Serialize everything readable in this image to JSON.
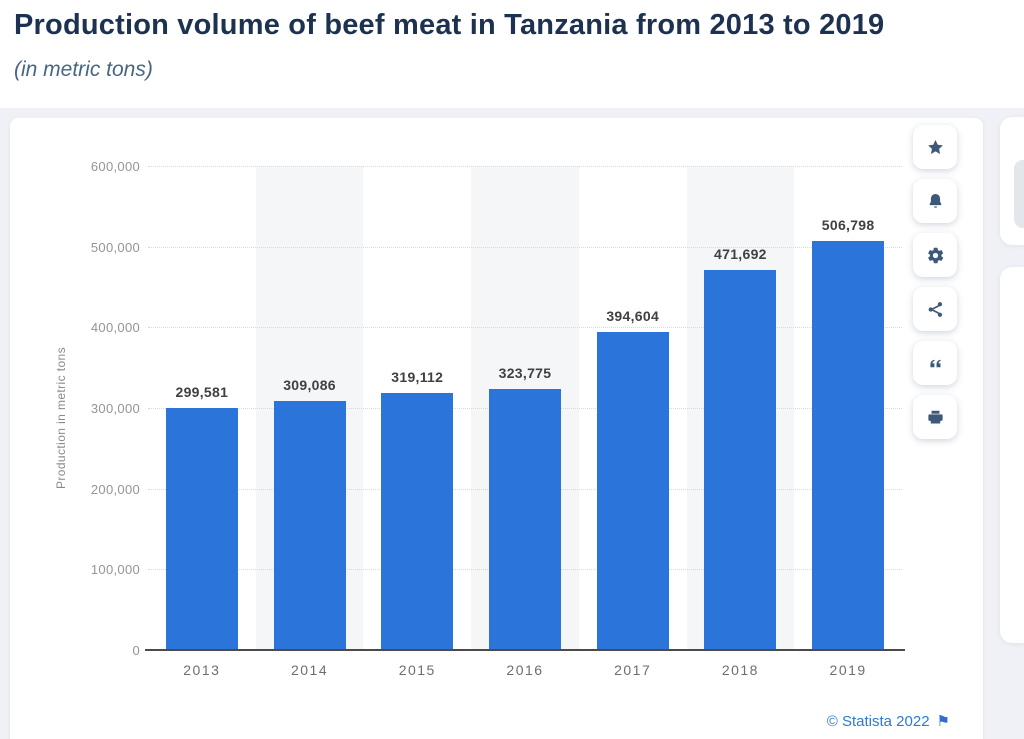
{
  "header": {
    "title": "Production volume of beef meat in Tanzania from 2013 to 2019",
    "subtitle": "(in metric tons)"
  },
  "chart_data": {
    "type": "bar",
    "title": "Production volume of beef meat in Tanzania from 2013 to 2019",
    "subtitle": "(in metric tons)",
    "categories": [
      "2013",
      "2014",
      "2015",
      "2016",
      "2017",
      "2018",
      "2019"
    ],
    "values": [
      299581,
      309086,
      319112,
      323775,
      394604,
      471692,
      506798
    ],
    "value_labels": [
      "299,581",
      "309,086",
      "319,112",
      "323,775",
      "394,604",
      "471,692",
      "506,798"
    ],
    "xlabel": "",
    "ylabel": "Production in metric tons",
    "ylim": [
      0,
      600000
    ],
    "ytick_step": 100000,
    "ytick_labels": [
      "0",
      "100,000",
      "200,000",
      "300,000",
      "400,000",
      "500,000",
      "600,000"
    ],
    "grid": "horizontal-dotted",
    "legend": "none",
    "bar_color": "#2b74d9",
    "stripe_color": "#f5f6f8"
  },
  "toolbar": {
    "buttons": [
      {
        "name": "favorite-button",
        "icon": "star-icon"
      },
      {
        "name": "notifications-button",
        "icon": "bell-icon"
      },
      {
        "name": "settings-button",
        "icon": "gear-icon"
      },
      {
        "name": "share-button",
        "icon": "share-icon"
      },
      {
        "name": "cite-button",
        "icon": "quote-icon"
      },
      {
        "name": "print-button",
        "icon": "printer-icon"
      }
    ]
  },
  "footer": {
    "copyright": "© Statista 2022",
    "flag_icon": "flag-icon",
    "flag_glyph": "⚑"
  },
  "colors": {
    "bar": "#2b74d9",
    "title_text": "#1c3250",
    "subtitle_text": "#476685",
    "page_background": "#eff1f6",
    "card_background": "#ffffff",
    "link": "#2b7cd3",
    "axis_line": "#4b4b4b",
    "toolbar_icon": "#3e5878"
  }
}
